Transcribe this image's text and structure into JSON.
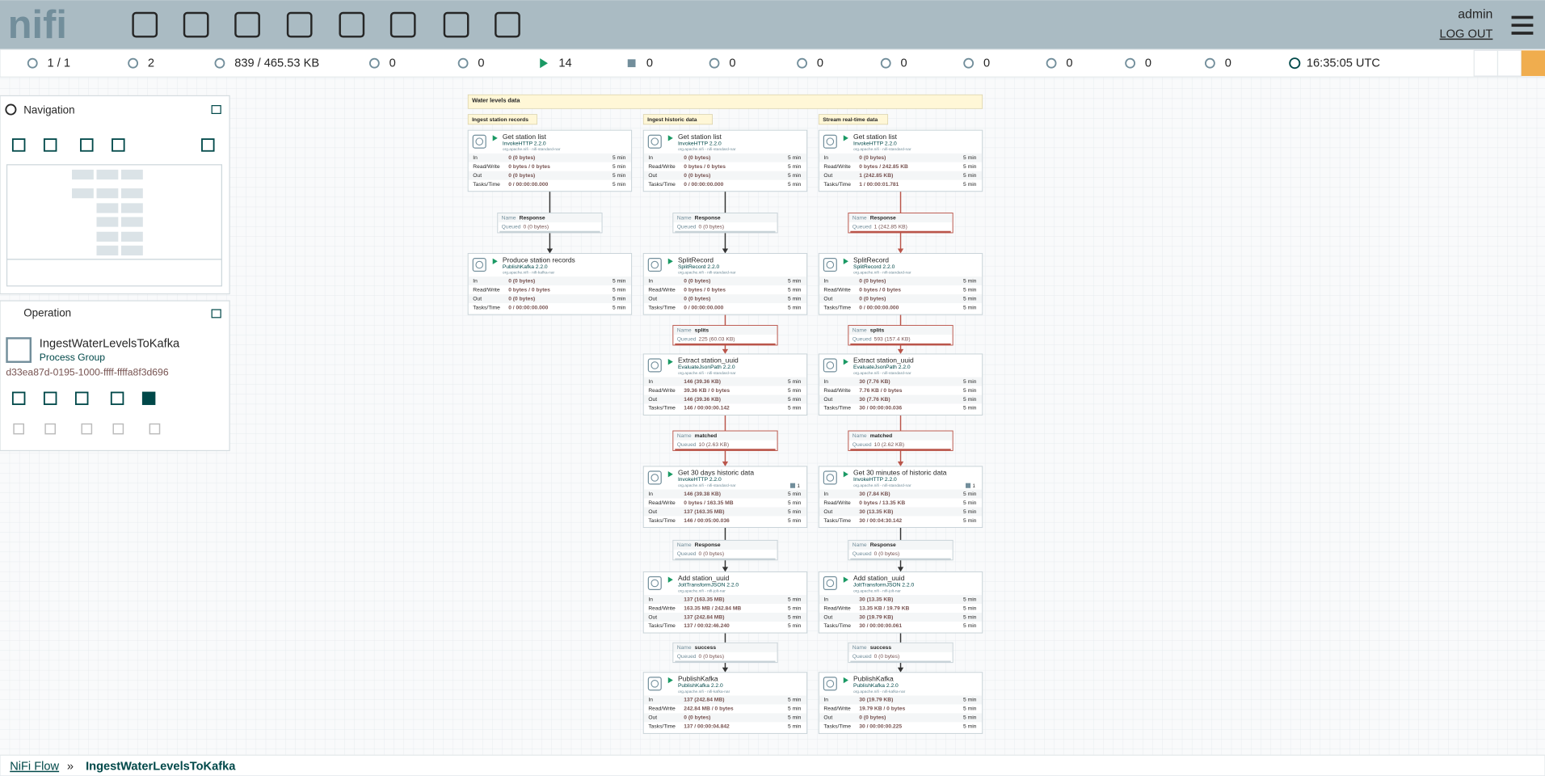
{
  "header": {
    "logo": "nifi",
    "user": "admin",
    "logout": "LOG OUT"
  },
  "status": {
    "items": [
      "1 / 1",
      "2",
      "839 / 465.53 KB",
      "0",
      "0",
      "14",
      "0",
      "0",
      "0",
      "0",
      "0",
      "0",
      "0",
      "0"
    ],
    "time": "16:35:05 UTC"
  },
  "navigation": {
    "title": "Navigation"
  },
  "operation": {
    "title": "Operation",
    "name": "IngestWaterLevelsToKafka",
    "kind": "Process Group",
    "id": "d33ea87d-0195-1000-ffff-ffffa8f3d696"
  },
  "breadcrumb": [
    "NiFi Flow",
    "»",
    "IngestWaterLevelsToKafka"
  ],
  "canvas": {
    "label": "Water levels data",
    "stat_labels": [
      "In",
      "Read/Write",
      "Out",
      "Tasks/Time"
    ],
    "stat_window": "5 min",
    "conn_labels": [
      "Name",
      "Queued"
    ],
    "flows": [
      {
        "title": "Ingest station records",
        "processors": [
          {
            "name": "Get station list",
            "type": "InvokeHTTP 2.2.0",
            "bundle": "org.apache.nifi - nifi-standard-nar",
            "stats": [
              "0 (0 bytes)",
              "0 bytes / 0 bytes",
              "0 (0 bytes)",
              "0 / 00:00:00.000"
            ]
          },
          {
            "name": "Produce station records",
            "type": "PublishKafka 2.2.0",
            "bundle": "org.apache.nifi - nifi-kafka-nar",
            "stats": [
              "0 (0 bytes)",
              "0 bytes / 0 bytes",
              "0 (0 bytes)",
              "0 / 00:00:00.000"
            ]
          }
        ],
        "connections": [
          {
            "name": "Response",
            "queued": "0 (0 bytes)",
            "color": "#333333"
          }
        ]
      },
      {
        "title": "Ingest historic data",
        "processors": [
          {
            "name": "Get station list",
            "type": "InvokeHTTP 2.2.0",
            "bundle": "org.apache.nifi - nifi-standard-nar",
            "stats": [
              "0 (0 bytes)",
              "0 bytes / 0 bytes",
              "0 (0 bytes)",
              "0 / 00:00:00.000"
            ]
          },
          {
            "name": "SplitRecord",
            "type": "SplitRecord 2.2.0",
            "bundle": "org.apache.nifi - nifi-standard-nar",
            "stats": [
              "0 (0 bytes)",
              "0 bytes / 0 bytes",
              "0 (0 bytes)",
              "0 / 00:00:00.000"
            ]
          },
          {
            "name": "Extract station_uuid",
            "type": "EvaluateJsonPath 2.2.0",
            "bundle": "org.apache.nifi - nifi-standard-nar",
            "stats": [
              "146 (39.36 KB)",
              "39.36 KB / 0 bytes",
              "146 (39.36 KB)",
              "146 / 00:00:00.142"
            ]
          },
          {
            "name": "Get 30 days historic data",
            "type": "InvokeHTTP 2.2.0",
            "bundle": "org.apache.nifi - nifi-standard-nar",
            "threads": "1",
            "stats": [
              "146 (39.38 KB)",
              "0 bytes / 163.35 MB",
              "137 (163.35 MB)",
              "146 / 00:05:00.036"
            ]
          },
          {
            "name": "Add station_uuid",
            "type": "JoltTransformJSON 2.2.0",
            "bundle": "org.apache.nifi - nifi-jolt-nar",
            "stats": [
              "137 (163.35 MB)",
              "163.35 MB / 242.84 MB",
              "137 (242.84 MB)",
              "137 / 00:02:46.240"
            ]
          },
          {
            "name": "PublishKafka",
            "type": "PublishKafka 2.2.0",
            "bundle": "org.apache.nifi - nifi-kafka-nar",
            "stats": [
              "137 (242.84 MB)",
              "242.84 MB / 0 bytes",
              "0 (0 bytes)",
              "137 / 00:00:04.842"
            ]
          }
        ],
        "connections": [
          {
            "name": "Response",
            "queued": "0 (0 bytes)",
            "color": "#333333"
          },
          {
            "name": "splits",
            "queued": "225 (60.03 KB)",
            "color": "#ba554a"
          },
          {
            "name": "matched",
            "queued": "10 (2.63 KB)",
            "color": "#ba554a"
          },
          {
            "name": "Response",
            "queued": "0 (0 bytes)",
            "color": "#333333"
          },
          {
            "name": "success",
            "queued": "0 (0 bytes)",
            "color": "#333333"
          }
        ]
      },
      {
        "title": "Stream real-time data",
        "processors": [
          {
            "name": "Get station list",
            "type": "InvokeHTTP 2.2.0",
            "bundle": "org.apache.nifi - nifi-standard-nar",
            "stats": [
              "0 (0 bytes)",
              "0 bytes / 242.85 KB",
              "1 (242.85 KB)",
              "1 / 00:00:01.781"
            ]
          },
          {
            "name": "SplitRecord",
            "type": "SplitRecord 2.2.0",
            "bundle": "org.apache.nifi - nifi-standard-nar",
            "stats": [
              "0 (0 bytes)",
              "0 bytes / 0 bytes",
              "0 (0 bytes)",
              "0 / 00:00:00.000"
            ]
          },
          {
            "name": "Extract station_uuid",
            "type": "EvaluateJsonPath 2.2.0",
            "bundle": "org.apache.nifi - nifi-standard-nar",
            "stats": [
              "30 (7.76 KB)",
              "7.76 KB / 0 bytes",
              "30 (7.76 KB)",
              "30 / 00:00:00.036"
            ]
          },
          {
            "name": "Get 30 minutes of historic data",
            "type": "InvokeHTTP 2.2.0",
            "bundle": "org.apache.nifi - nifi-standard-nar",
            "threads": "1",
            "stats": [
              "30 (7.84 KB)",
              "0 bytes / 13.35 KB",
              "30 (13.35 KB)",
              "30 / 00:04:30.142"
            ]
          },
          {
            "name": "Add station_uuid",
            "type": "JoltTransformJSON 2.2.0",
            "bundle": "org.apache.nifi - nifi-jolt-nar",
            "stats": [
              "30 (13.35 KB)",
              "13.35 KB / 19.79 KB",
              "30 (19.79 KB)",
              "30 / 00:00:00.061"
            ]
          },
          {
            "name": "PublishKafka",
            "type": "PublishKafka 2.2.0",
            "bundle": "org.apache.nifi - nifi-kafka-nar",
            "stats": [
              "30 (19.79 KB)",
              "19.79 KB / 0 bytes",
              "0 (0 bytes)",
              "30 / 00:00:00.225"
            ]
          }
        ],
        "connections": [
          {
            "name": "Response",
            "queued": "1 (242.85 KB)",
            "color": "#ba554a"
          },
          {
            "name": "splits",
            "queued": "593 (157.4 KB)",
            "color": "#ba554a"
          },
          {
            "name": "matched",
            "queued": "10 (2.62 KB)",
            "color": "#ba554a"
          },
          {
            "name": "Response",
            "queued": "0 (0 bytes)",
            "color": "#333333"
          },
          {
            "name": "success",
            "queued": "0 (0 bytes)",
            "color": "#333333"
          }
        ]
      }
    ]
  }
}
